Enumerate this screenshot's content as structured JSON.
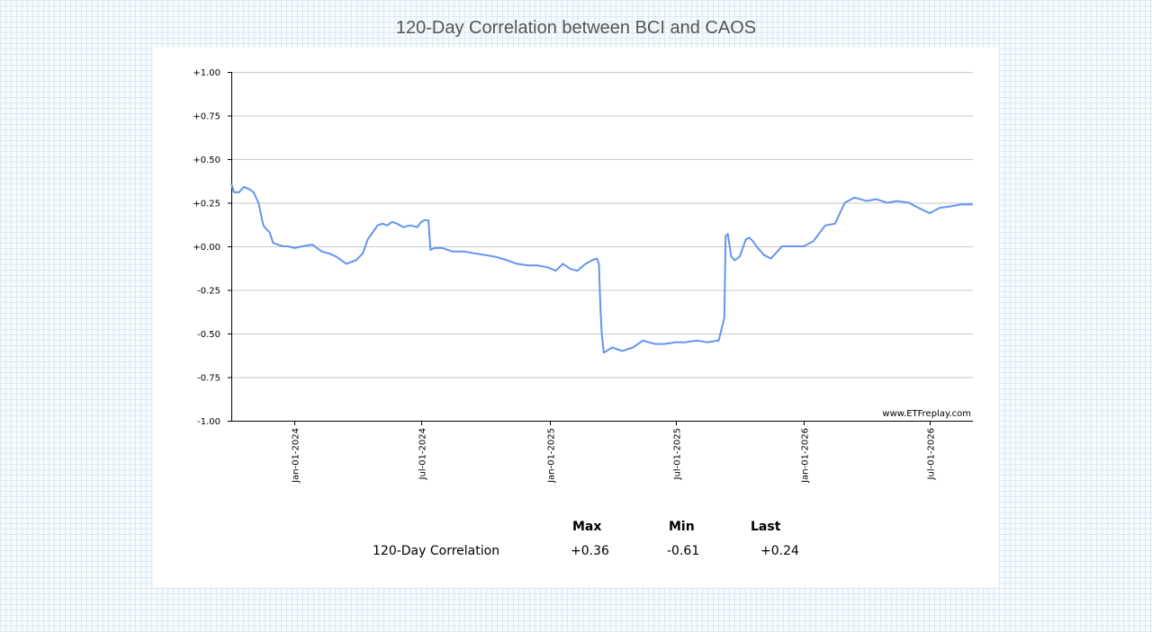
{
  "page": {
    "title": "120-Day Correlation between BCI and CAOS"
  },
  "watermark": "www.ETFreplay.com",
  "stats": {
    "headers": {
      "max": "Max",
      "min": "Min",
      "last": "Last"
    },
    "row_label": "120-Day Correlation",
    "max": "+0.36",
    "min": "-0.61",
    "last": "+0.24"
  },
  "chart_data": {
    "type": "line",
    "title": "120-Day Correlation between BCI and CAOS",
    "xlabel": "",
    "ylabel": "",
    "ylim": [
      -1.0,
      1.0
    ],
    "yticks": [
      1.0,
      0.75,
      0.5,
      0.25,
      0.0,
      -0.25,
      -0.5,
      -0.75,
      -1.0
    ],
    "ytick_labels": [
      "+1.00",
      "+0.75",
      "+0.50",
      "+0.25",
      "+0.00",
      "-0.25",
      "-0.50",
      "-0.75",
      "-1.00"
    ],
    "xlim": [
      "2023-10-02",
      "2026-09-01"
    ],
    "xticks": [
      "2024-01-01",
      "2024-07-01",
      "2025-01-01",
      "2025-07-01",
      "2026-01-01",
      "2026-07-01"
    ],
    "xtick_labels": [
      "Jan-01-2024",
      "Jul-01-2024",
      "Jan-01-2025",
      "Jul-01-2025",
      "Jan-01-2026",
      "Jul-01-2026"
    ],
    "grid": true,
    "color": "#6495ed",
    "series": [
      {
        "x": [
          "2023-10-02",
          "2023-10-06",
          "2023-10-13",
          "2023-10-20",
          "2023-10-27",
          "2023-11-03",
          "2023-11-10",
          "2023-11-17",
          "2023-11-21",
          "2023-11-26",
          "2023-12-01",
          "2023-12-08",
          "2023-12-15",
          "2023-12-22",
          "2024-01-01",
          "2024-01-12",
          "2024-01-26",
          "2024-02-09",
          "2024-02-19",
          "2024-03-01",
          "2024-03-15",
          "2024-03-29",
          "2024-04-08",
          "2024-04-15",
          "2024-04-22",
          "2024-04-29",
          "2024-05-06",
          "2024-05-13",
          "2024-05-20",
          "2024-05-27",
          "2024-06-05",
          "2024-06-15",
          "2024-06-25",
          "2024-07-01",
          "2024-07-06",
          "2024-07-11",
          "2024-07-14",
          "2024-07-20",
          "2024-07-31",
          "2024-08-15",
          "2024-09-01",
          "2024-09-15",
          "2024-10-01",
          "2024-10-15",
          "2024-11-01",
          "2024-11-15",
          "2024-12-01",
          "2024-12-15",
          "2024-12-29",
          "2025-01-10",
          "2025-01-20",
          "2025-01-31",
          "2025-02-10",
          "2025-02-22",
          "2025-03-03",
          "2025-03-10",
          "2025-03-13",
          "2025-03-15",
          "2025-03-17",
          "2025-03-20",
          "2025-04-01",
          "2025-04-15",
          "2025-05-01",
          "2025-05-15",
          "2025-06-01",
          "2025-06-15",
          "2025-07-01",
          "2025-07-15",
          "2025-08-01",
          "2025-08-15",
          "2025-09-01",
          "2025-09-09",
          "2025-09-11",
          "2025-09-14",
          "2025-09-19",
          "2025-09-24",
          "2025-10-01",
          "2025-10-10",
          "2025-10-15",
          "2025-10-20",
          "2025-10-25",
          "2025-11-05",
          "2025-11-15",
          "2025-12-01",
          "2025-12-15",
          "2026-01-01",
          "2026-01-15",
          "2026-02-01",
          "2026-02-15",
          "2026-03-01",
          "2026-03-15",
          "2026-04-01",
          "2026-04-15",
          "2026-05-01",
          "2026-05-15",
          "2026-06-01",
          "2026-06-15",
          "2026-07-01",
          "2026-07-15",
          "2026-08-01",
          "2026-08-15",
          "2026-09-01"
        ],
        "y": [
          0.36,
          0.31,
          0.31,
          0.34,
          0.33,
          0.31,
          0.25,
          0.12,
          0.1,
          0.08,
          0.02,
          0.01,
          0.0,
          0.0,
          -0.01,
          0.0,
          0.01,
          -0.03,
          -0.04,
          -0.06,
          -0.1,
          -0.08,
          -0.04,
          0.04,
          0.08,
          0.12,
          0.13,
          0.12,
          0.14,
          0.13,
          0.11,
          0.12,
          0.11,
          0.14,
          0.15,
          0.15,
          -0.02,
          -0.01,
          -0.01,
          -0.03,
          -0.03,
          -0.04,
          -0.05,
          -0.06,
          -0.08,
          -0.1,
          -0.11,
          -0.11,
          -0.12,
          -0.14,
          -0.1,
          -0.13,
          -0.14,
          -0.1,
          -0.08,
          -0.07,
          -0.1,
          -0.35,
          -0.5,
          -0.61,
          -0.58,
          -0.6,
          -0.58,
          -0.54,
          -0.56,
          -0.56,
          -0.55,
          -0.55,
          -0.54,
          -0.55,
          -0.54,
          -0.41,
          0.06,
          0.07,
          -0.06,
          -0.08,
          -0.06,
          0.04,
          0.05,
          0.03,
          0.0,
          -0.05,
          -0.07,
          0.0,
          0.0,
          0.0,
          0.03,
          0.12,
          0.13,
          0.25,
          0.28,
          0.26,
          0.27,
          0.25,
          0.26,
          0.25,
          0.22,
          0.19,
          0.22,
          0.23,
          0.24,
          0.24
        ]
      }
    ]
  }
}
